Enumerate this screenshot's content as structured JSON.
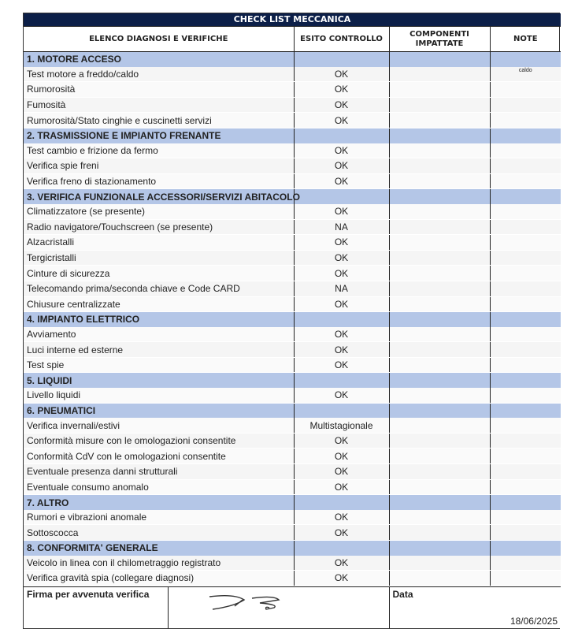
{
  "title": "CHECK LIST MECCANICA",
  "headers": {
    "c1": "ELENCO DIAGNOSI E VERIFICHE",
    "c2": "ESITO CONTROLLO",
    "c3": "COMPONENTI IMPATTATE",
    "c4": "NOTE"
  },
  "sections": [
    {
      "title": "1. MOTORE ACCESO",
      "items": [
        {
          "label": "Test motore a freddo/caldo",
          "result": "OK",
          "note": "caldo"
        },
        {
          "label": "Rumorosità",
          "result": "OK"
        },
        {
          "label": "Fumosità",
          "result": "OK"
        },
        {
          "label": "Rumorosità/Stato cinghie e cuscinetti servizi",
          "result": "OK"
        }
      ]
    },
    {
      "title": "2. TRASMISSIONE E IMPIANTO FRENANTE",
      "items": [
        {
          "label": "Test cambio e frizione da fermo",
          "result": "OK"
        },
        {
          "label": "Verifica spie freni",
          "result": "OK"
        },
        {
          "label": "Verifica freno di stazionamento",
          "result": "OK"
        }
      ]
    },
    {
      "title": "3. VERIFICA FUNZIONALE ACCESSORI/SERVIZI ABITACOLO",
      "items": [
        {
          "label": "Climatizzatore (se presente)",
          "result": "OK"
        },
        {
          "label": "Radio navigatore/Touchscreen (se presente)",
          "result": "NA"
        },
        {
          "label": "Alzacristalli",
          "result": "OK"
        },
        {
          "label": "Tergicristalli",
          "result": "OK"
        },
        {
          "label": "Cinture di sicurezza",
          "result": "OK"
        },
        {
          "label": "Telecomando prima/seconda chiave e Code CARD",
          "result": "NA"
        },
        {
          "label": "Chiusure centralizzate",
          "result": "OK"
        }
      ]
    },
    {
      "title": "4. IMPIANTO ELETTRICO",
      "items": [
        {
          "label": "Avviamento",
          "result": "OK"
        },
        {
          "label": "Luci interne ed esterne",
          "result": "OK"
        },
        {
          "label": "Test spie",
          "result": "OK"
        }
      ]
    },
    {
      "title": "5. LIQUIDI",
      "items": [
        {
          "label": "Livello liquidi",
          "result": "OK"
        }
      ]
    },
    {
      "title": "6. PNEUMATICI",
      "items": [
        {
          "label": "Verifica invernali/estivi",
          "result": "Multistagionale"
        },
        {
          "label": "Conformità misure con le omologazioni consentite",
          "result": "OK"
        },
        {
          "label": "Conformità CdV con le omologazioni consentite",
          "result": "OK"
        },
        {
          "label": "Eventuale presenza danni strutturali",
          "result": "OK"
        },
        {
          "label": "Eventuale consumo anomalo",
          "result": "OK"
        }
      ]
    },
    {
      "title": "7. ALTRO",
      "items": [
        {
          "label": "Rumori e vibrazioni anomale",
          "result": "OK"
        },
        {
          "label": "Sottoscocca",
          "result": "OK"
        }
      ]
    },
    {
      "title": "8. CONFORMITA' GENERALE",
      "items": [
        {
          "label": "Veicolo in linea con il chilometraggio registrato",
          "result": "OK"
        },
        {
          "label": "Verifica gravità spia (collegare diagnosi)",
          "result": "OK"
        }
      ]
    }
  ],
  "footer": {
    "signature_label": "Firma per avvenuta verifica",
    "date_label": "Data",
    "date": "18/06/2025"
  }
}
